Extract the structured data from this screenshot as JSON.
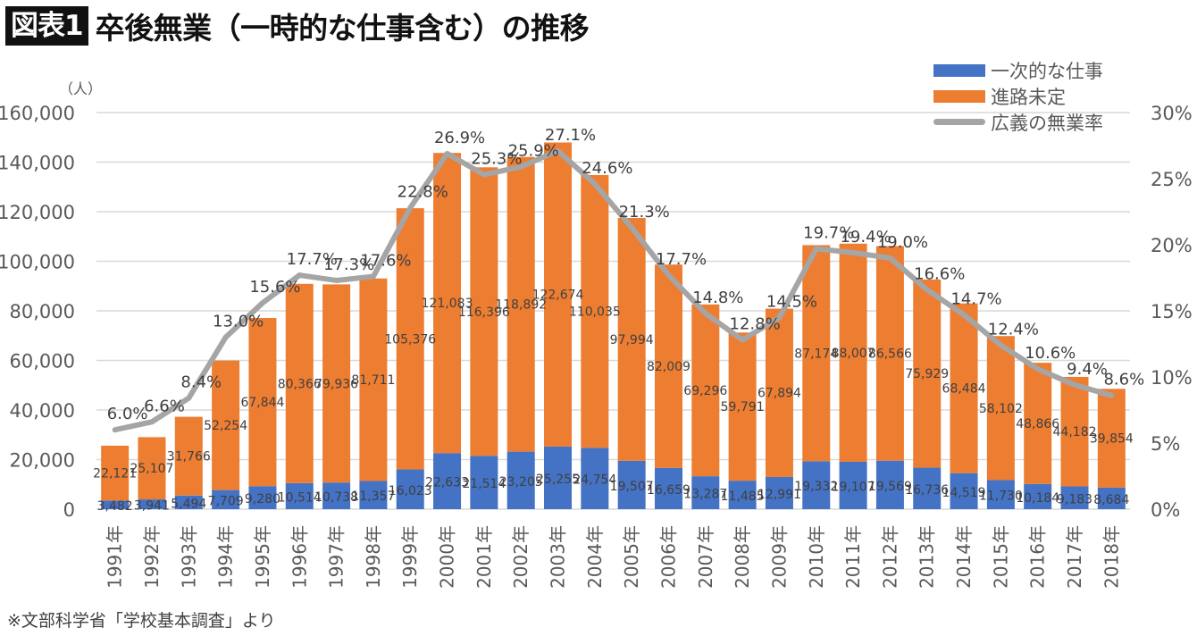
{
  "header": {
    "badge": "図表1",
    "title": "卒後無業（一時的な仕事含む）の推移"
  },
  "footer": {
    "source": "※文部科学省「学校基本調査」より"
  },
  "colors": {
    "temporary": "#4472C4",
    "undecided": "#ED7D31",
    "rate": "#A5A5A5",
    "grid": "#D9D9D9"
  },
  "chart_data": {
    "type": "bar",
    "stacked": true,
    "title": "卒後無業（一時的な仕事含む）の推移",
    "ylabel": "（人）",
    "ylim": [
      0,
      160000
    ],
    "y_ticks": [
      "0",
      "20,000",
      "40,000",
      "60,000",
      "80,000",
      "100,000",
      "120,000",
      "140,000",
      "160,000"
    ],
    "y2lim": [
      0,
      30
    ],
    "y2_ticks": [
      "0%",
      "5%",
      "10%",
      "15%",
      "20%",
      "25%",
      "30%"
    ],
    "grid": true,
    "legend_position": "top-right",
    "categories": [
      "1991年",
      "1992年",
      "1993年",
      "1994年",
      "1995年",
      "1996年",
      "1997年",
      "1998年",
      "1999年",
      "2000年",
      "2001年",
      "2002年",
      "2003年",
      "2004年",
      "2005年",
      "2006年",
      "2007年",
      "2008年",
      "2009年",
      "2010年",
      "2011年",
      "2012年",
      "2013年",
      "2014年",
      "2015年",
      "2016年",
      "2017年",
      "2018年"
    ],
    "series": [
      {
        "name": "一次的な仕事",
        "type": "bar",
        "axis": "left",
        "values": [
          3482,
          3941,
          5494,
          7709,
          9280,
          10514,
          10738,
          11357,
          16023,
          22633,
          21514,
          23205,
          25255,
          24754,
          19507,
          16659,
          13287,
          11485,
          12991,
          19332,
          19107,
          19569,
          16736,
          14519,
          11730,
          10184,
          9183,
          8684
        ],
        "labels": [
          "3,482",
          "3,941",
          "5,494",
          "7,709",
          "9,280",
          "10,514",
          "10,738",
          "11,357",
          "16,023",
          "22,633",
          "21,514",
          "23,205",
          "25,255",
          "24,754",
          "19,507",
          "16,659",
          "13,287",
          "11,485",
          "12,991",
          "19,332",
          "19,107",
          "19,569",
          "16,736",
          "14,519",
          "11,730",
          "10,184",
          "9,183",
          "8,684"
        ]
      },
      {
        "name": "進路未定",
        "type": "bar",
        "axis": "left",
        "values": [
          22121,
          25107,
          31766,
          52254,
          67844,
          80366,
          79936,
          81711,
          105376,
          121083,
          116396,
          118892,
          122674,
          110035,
          97994,
          82009,
          69296,
          59791,
          67894,
          87174,
          88007,
          86566,
          75929,
          68484,
          58102,
          48866,
          44182,
          39854
        ],
        "labels": [
          "22,121",
          "25,107",
          "31,766",
          "52,254",
          "67,844",
          "80,366",
          "79,936",
          "81,711",
          "105,376",
          "121,083",
          "116,396",
          "118,892",
          "122,674",
          "110,035",
          "97,994",
          "82,009",
          "69,296",
          "59,791",
          "67,894",
          "87,174",
          "88,007",
          "86,566",
          "75,929",
          "68,484",
          "58,102",
          "48,866",
          "44,182",
          "39,854"
        ]
      },
      {
        "name": "広義の無業率",
        "type": "line",
        "axis": "right",
        "values": [
          6.0,
          6.6,
          8.4,
          13.0,
          15.6,
          17.7,
          17.3,
          17.6,
          22.8,
          26.9,
          25.3,
          25.9,
          27.1,
          24.6,
          21.3,
          17.7,
          14.8,
          12.8,
          14.5,
          19.7,
          19.4,
          19.0,
          16.6,
          14.7,
          12.4,
          10.6,
          9.4,
          8.6
        ],
        "labels": [
          "6.0%",
          "6.6%",
          "8.4%",
          "13.0%",
          "15.6%",
          "17.7%",
          "17.3%",
          "17.6%",
          "22.8%",
          "26.9%",
          "25.3%",
          "25.9%",
          "27.1%",
          "24.6%",
          "21.3%",
          "17.7%",
          "14.8%",
          "12.8%",
          "14.5%",
          "19.7%",
          "19.4%",
          "19.0%",
          "16.6%",
          "14.7%",
          "12.4%",
          "10.6%",
          "9.4%",
          "8.6%"
        ]
      }
    ]
  }
}
